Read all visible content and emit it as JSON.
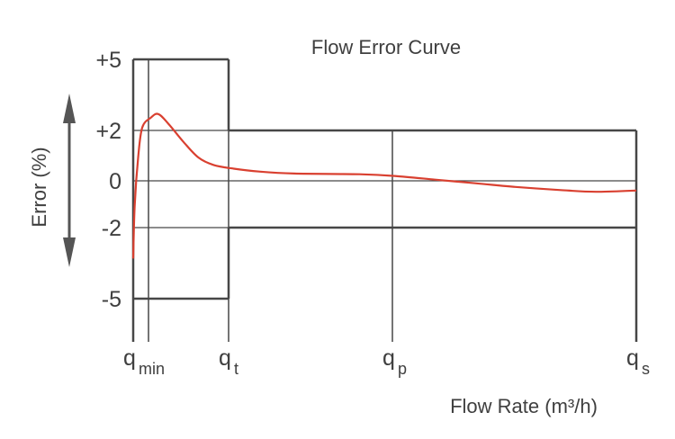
{
  "chart_data": {
    "type": "line",
    "title": "Flow Error Curve",
    "xlabel": "Flow Rate (m³/h)",
    "ylabel": "Error (%)",
    "y_ticks": [
      "+5",
      "+2",
      "0",
      "-2",
      "-5"
    ],
    "y_tick_values": [
      5,
      2,
      0,
      -2,
      -5
    ],
    "x_ticks": [
      {
        "main": "q",
        "sub": "min"
      },
      {
        "main": "q",
        "sub": "t"
      },
      {
        "main": "q",
        "sub": "p"
      },
      {
        "main": "q",
        "sub": "s"
      }
    ],
    "error_limits": {
      "low_flow_zone": {
        "from": "q_min",
        "to": "q_t",
        "upper": 5,
        "lower": -5
      },
      "high_flow_zone": {
        "from": "q_t",
        "to": "q_s",
        "upper": 2,
        "lower": -2
      }
    },
    "series": [
      {
        "color": "#d94030",
        "points": [
          {
            "x": 0.0,
            "y": -3.2
          },
          {
            "x": 0.003,
            "y": -1.0
          },
          {
            "x": 0.01,
            "y": 1.0
          },
          {
            "x": 0.018,
            "y": 2.2
          },
          {
            "x": 0.035,
            "y": 2.6
          },
          {
            "x": 0.05,
            "y": 2.75
          },
          {
            "x": 0.07,
            "y": 2.35
          },
          {
            "x": 0.1,
            "y": 1.6
          },
          {
            "x": 0.13,
            "y": 0.95
          },
          {
            "x": 0.16,
            "y": 0.65
          },
          {
            "x": 0.2,
            "y": 0.5
          },
          {
            "x": 0.25,
            "y": 0.38
          },
          {
            "x": 0.32,
            "y": 0.3
          },
          {
            "x": 0.45,
            "y": 0.27
          },
          {
            "x": 0.52,
            "y": 0.2
          },
          {
            "x": 0.6,
            "y": 0.05
          },
          {
            "x": 0.68,
            "y": -0.1
          },
          {
            "x": 0.76,
            "y": -0.25
          },
          {
            "x": 0.85,
            "y": -0.38
          },
          {
            "x": 0.92,
            "y": -0.45
          },
          {
            "x": 1.0,
            "y": -0.4
          }
        ]
      }
    ],
    "colors": {
      "frame": "#474747",
      "curve": "#d94030",
      "text": "#3f3f3f",
      "arrow": "#555555"
    }
  }
}
